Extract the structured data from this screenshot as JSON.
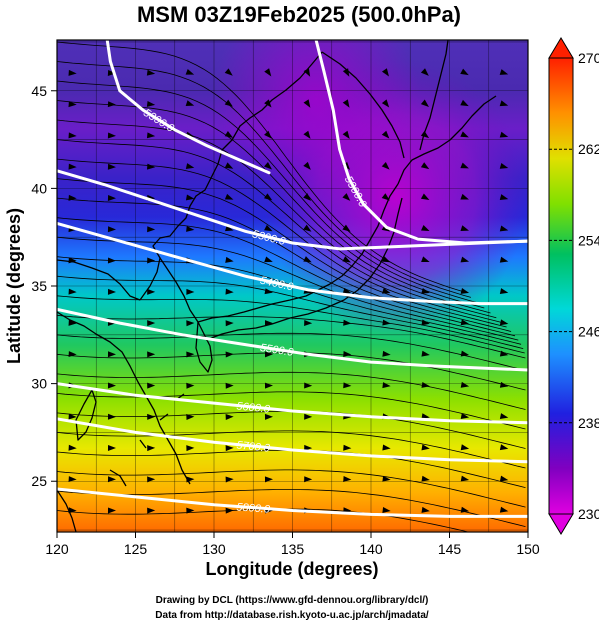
{
  "title": "MSM 03Z19Feb2025 (500.0hPa)",
  "x_axis": {
    "label": "Longitude (degrees)",
    "range": [
      120,
      150
    ],
    "ticks": [
      120,
      125,
      130,
      135,
      140,
      145,
      150
    ]
  },
  "y_axis": {
    "label": "Latitude (degrees)",
    "range": [
      22.4,
      47.6
    ],
    "ticks": [
      25,
      30,
      35,
      40,
      45
    ]
  },
  "colorbar": {
    "range": [
      230,
      270
    ],
    "ticks": [
      230,
      238,
      246,
      254,
      262,
      270
    ],
    "colors": [
      "#e000e0",
      "#8000c0",
      "#2020e0",
      "#1e90ff",
      "#00d8d8",
      "#00c060",
      "#80e000",
      "#e0e000",
      "#ff9000",
      "#ff2000"
    ]
  },
  "contours": [
    {
      "label": "5300.0",
      "points": [
        [
          120,
          40.9
        ],
        [
          123,
          40.2
        ],
        [
          126,
          39.4
        ],
        [
          129,
          38.6
        ],
        [
          132,
          37.8
        ],
        [
          135,
          37.2
        ],
        [
          138,
          36.9
        ],
        [
          141,
          37.0
        ],
        [
          144,
          37.1
        ],
        [
          147,
          37.2
        ],
        [
          150,
          37.3
        ]
      ]
    },
    {
      "label": "5300.0",
      "points": [
        [
          123.2,
          47.6
        ],
        [
          123.4,
          46.5
        ],
        [
          124,
          45
        ],
        [
          125.5,
          44
        ],
        [
          127.5,
          43
        ],
        [
          129.5,
          42.2
        ],
        [
          131.5,
          41.5
        ],
        [
          133.5,
          40.8
        ]
      ]
    },
    {
      "label": "5300.0",
      "points": [
        [
          136.5,
          47.6
        ],
        [
          137,
          46
        ],
        [
          137.6,
          44
        ],
        [
          138,
          42
        ],
        [
          138.6,
          40.5
        ],
        [
          139.5,
          39.2
        ],
        [
          141,
          38
        ],
        [
          143,
          37.4
        ],
        [
          146,
          37.2
        ],
        [
          150,
          37.3
        ]
      ]
    },
    {
      "label": "5400.0",
      "points": [
        [
          120,
          38.2
        ],
        [
          124,
          37.3
        ],
        [
          128,
          36.4
        ],
        [
          132,
          35.5
        ],
        [
          136,
          34.8
        ],
        [
          140,
          34.4
        ],
        [
          144,
          34.2
        ],
        [
          147,
          34.1
        ],
        [
          150,
          34.1
        ]
      ]
    },
    {
      "label": "5500.0",
      "points": [
        [
          120,
          33.8
        ],
        [
          124,
          33.1
        ],
        [
          128,
          32.5
        ],
        [
          132,
          32.0
        ],
        [
          136,
          31.5
        ],
        [
          140,
          31.1
        ],
        [
          144,
          30.9
        ],
        [
          150,
          30.7
        ]
      ]
    },
    {
      "label": "5600.0",
      "points": [
        [
          120,
          30.0
        ],
        [
          125,
          29.4
        ],
        [
          130,
          29.0
        ],
        [
          135,
          28.6
        ],
        [
          140,
          28.3
        ],
        [
          145,
          28.1
        ],
        [
          150,
          28.0
        ]
      ]
    },
    {
      "label": "5700.0",
      "points": [
        [
          120,
          28.2
        ],
        [
          125,
          27.5
        ],
        [
          130,
          27.0
        ],
        [
          135,
          26.6
        ],
        [
          140,
          26.3
        ],
        [
          145,
          26.1
        ],
        [
          150,
          26.0
        ]
      ]
    },
    {
      "label": "5800.0",
      "points": [
        [
          120,
          24.6
        ],
        [
          125,
          24.2
        ],
        [
          130,
          23.8
        ],
        [
          135,
          23.5
        ],
        [
          140,
          23.3
        ],
        [
          145,
          23.2
        ],
        [
          150,
          23.2
        ]
      ]
    }
  ],
  "credits": {
    "line1": "Drawing by DCL (https://www.gfd-dennou.org/library/dcl/)",
    "line2": "Data from http://database.rish.kyoto-u.ac.jp/arch/jmadata/"
  }
}
